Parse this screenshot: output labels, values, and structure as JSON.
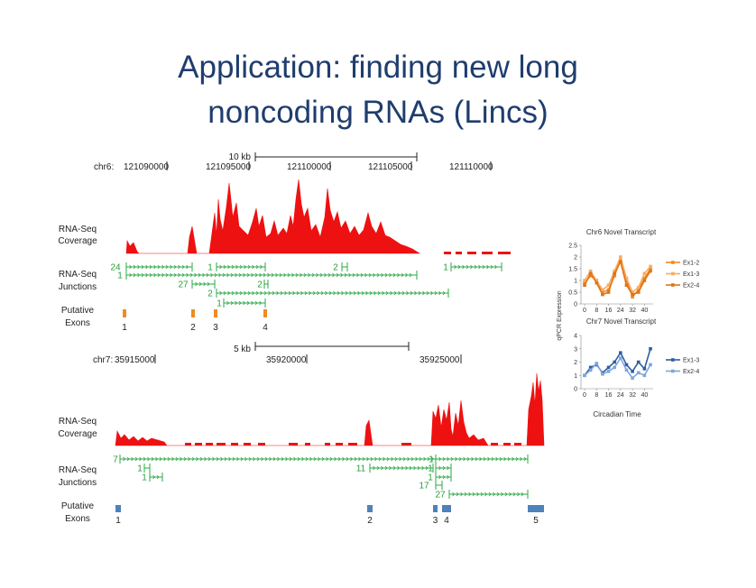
{
  "title_lines": [
    "Application: finding new long",
    "noncoding RNAs (Lincs)"
  ],
  "tracks": [
    {
      "scale_label": "10 kb",
      "chrom": "chr6:",
      "positions": [
        "121090000",
        "121095000",
        "121100000",
        "121105000",
        "121110000"
      ],
      "coverage_label": [
        "RNA-Seq",
        "Coverage"
      ],
      "junction_label": [
        "RNA-Seq",
        "Junctions"
      ],
      "exon_label": [
        "Putative",
        "Exons"
      ],
      "junction_counts": [
        24,
        1,
        2,
        1,
        1,
        27,
        2,
        2,
        1
      ],
      "exon_numbers": [
        "1",
        "2",
        "3",
        "4"
      ]
    },
    {
      "scale_label": "5 kb",
      "chrom": "chr7:",
      "positions": [
        "35915000",
        "35920000",
        "35925000"
      ],
      "coverage_label": [
        "RNA-Seq",
        "Coverage"
      ],
      "junction_label": [
        "RNA-Seq",
        "Junctions"
      ],
      "exon_label": [
        "Putative",
        "Exons"
      ],
      "junction_counts": [
        7,
        1,
        1,
        11,
        1,
        1,
        1,
        17,
        27
      ],
      "exon_numbers": [
        "1",
        "2",
        "3",
        "4",
        "5"
      ]
    }
  ],
  "ylabel": "qPCR Expression",
  "xlabel": "Circadian Time",
  "chart_data": [
    {
      "type": "line",
      "title": "Chr6 Novel Transcript",
      "x": [
        0,
        4,
        8,
        12,
        16,
        20,
        24,
        28,
        32,
        36,
        40,
        44
      ],
      "xlim": [
        0,
        44
      ],
      "xticks": [
        0,
        8,
        16,
        24,
        32,
        40
      ],
      "ylim": [
        0,
        2.5
      ],
      "yticks": [
        0,
        0.5,
        1,
        1.5,
        2,
        2.5
      ],
      "series": [
        {
          "name": "Ex1-2",
          "color": "#f08a24",
          "values": [
            0.9,
            1.2,
            1.0,
            0.5,
            0.6,
            1.2,
            1.9,
            1.0,
            0.3,
            0.6,
            1.1,
            1.5
          ]
        },
        {
          "name": "Ex1-3",
          "color": "#f6ad62",
          "values": [
            1.0,
            1.4,
            1.0,
            0.6,
            0.8,
            1.4,
            2.0,
            1.1,
            0.5,
            0.7,
            1.3,
            1.6
          ]
        },
        {
          "name": "Ex2-4",
          "color": "#e07414",
          "values": [
            0.8,
            1.3,
            0.9,
            0.4,
            0.5,
            1.3,
            1.8,
            0.8,
            0.4,
            0.5,
            1.0,
            1.4
          ]
        }
      ]
    },
    {
      "type": "line",
      "title": "Chr7 Novel Transcript",
      "x": [
        0,
        4,
        8,
        12,
        16,
        20,
        24,
        28,
        32,
        36,
        40,
        44
      ],
      "xlim": [
        0,
        44
      ],
      "xticks": [
        0,
        8,
        16,
        24,
        32,
        40
      ],
      "ylim": [
        0,
        4
      ],
      "yticks": [
        0,
        1,
        2,
        3,
        4
      ],
      "series": [
        {
          "name": "Ex1-3",
          "color": "#2e5fa3",
          "values": [
            1.0,
            1.6,
            1.8,
            1.2,
            1.6,
            2.0,
            2.7,
            1.8,
            1.3,
            2.0,
            1.5,
            3.0
          ]
        },
        {
          "name": "Ex2-4",
          "color": "#7ea6dc",
          "values": [
            1.0,
            1.4,
            1.9,
            1.1,
            1.3,
            1.6,
            2.3,
            1.4,
            0.8,
            1.2,
            1.0,
            1.8
          ]
        }
      ]
    }
  ]
}
